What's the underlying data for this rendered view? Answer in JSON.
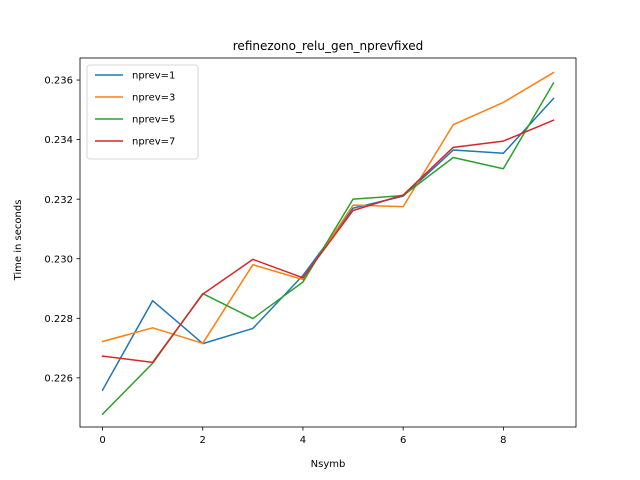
{
  "chart_data": {
    "type": "line",
    "title": "refinezono_relu_gen_nprevfixed",
    "xlabel": "Nsymb",
    "ylabel": "Time in seconds",
    "x": [
      0,
      1,
      2,
      3,
      4,
      5,
      6,
      7,
      8,
      9
    ],
    "xlim": [
      -0.45,
      9.45
    ],
    "ylim": [
      0.22435,
      0.23674
    ],
    "xticks": [
      0,
      2,
      4,
      6,
      8
    ],
    "xtick_labels": [
      "0",
      "2",
      "4",
      "6",
      "8"
    ],
    "yticks": [
      0.226,
      0.228,
      0.23,
      0.232,
      0.234,
      0.236
    ],
    "ytick_labels": [
      "0.226",
      "0.228",
      "0.230",
      "0.232",
      "0.234",
      "0.236"
    ],
    "grid": false,
    "legend_position": "top-left",
    "series": [
      {
        "name": "nprev=1",
        "color": "#1f77b4",
        "values": [
          0.22559,
          0.22859,
          0.22715,
          0.22766,
          0.22944,
          0.2317,
          0.2321,
          0.23365,
          0.23354,
          0.23538
        ]
      },
      {
        "name": "nprev=3",
        "color": "#ff7f0e",
        "values": [
          0.22722,
          0.22768,
          0.22716,
          0.2298,
          0.2293,
          0.2318,
          0.23175,
          0.2345,
          0.23525,
          0.23625
        ]
      },
      {
        "name": "nprev=5",
        "color": "#2ca02c",
        "values": [
          0.22478,
          0.22649,
          0.22883,
          0.22799,
          0.22922,
          0.232,
          0.23212,
          0.2334,
          0.23302,
          0.2359
        ]
      },
      {
        "name": "nprev=7",
        "color": "#d62728",
        "values": [
          0.22673,
          0.22652,
          0.22881,
          0.22998,
          0.22936,
          0.23162,
          0.23214,
          0.23374,
          0.23395,
          0.23465
        ]
      }
    ]
  }
}
